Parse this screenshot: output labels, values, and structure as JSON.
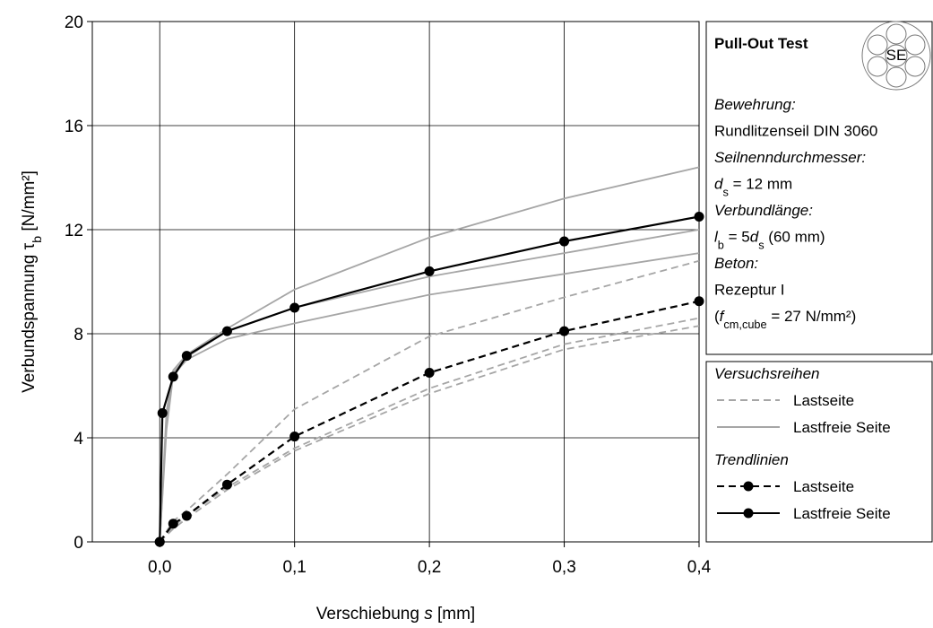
{
  "chart_data": {
    "type": "line",
    "xlabel": [
      {
        "text": "Verschiebung "
      },
      {
        "text": "s",
        "style": "italic"
      },
      {
        "text": " [mm]"
      }
    ],
    "ylabel": [
      {
        "text": "Verbundspannung τ"
      },
      {
        "text": "b",
        "style": "sub"
      },
      {
        "text": " [N/mm²]"
      }
    ],
    "xlim": [
      -0.05,
      0.4
    ],
    "xticks": [
      {
        "value": 0,
        "label": "0,0"
      },
      {
        "value": 0.1,
        "label": "0,1"
      },
      {
        "value": 0.2,
        "label": "0,2"
      },
      {
        "value": 0.3,
        "label": "0,3"
      },
      {
        "value": 0.4,
        "label": "0,4"
      }
    ],
    "ylim": [
      0,
      20
    ],
    "yticks": [
      0,
      4,
      8,
      12,
      16,
      20
    ],
    "grid": true,
    "series": [
      {
        "name": "Lastseite",
        "group": "Versuchsreihen",
        "color": "#a6a6a6",
        "dash": true,
        "markers": false,
        "x": [
          0,
          0.01,
          0.02,
          0.05,
          0.1,
          0.2,
          0.3,
          0.4
        ],
        "values": [
          0,
          0.8,
          1.2,
          2.6,
          5.1,
          7.9,
          9.4,
          10.8
        ]
      },
      {
        "name": "Lastseite",
        "group": "Versuchsreihen",
        "color": "#a6a6a6",
        "dash": true,
        "markers": false,
        "x": [
          0,
          0.01,
          0.02,
          0.05,
          0.1,
          0.2,
          0.3,
          0.4
        ],
        "values": [
          0,
          0.6,
          1.0,
          2.1,
          3.6,
          5.9,
          7.6,
          8.6
        ]
      },
      {
        "name": "Lastseite",
        "group": "Versuchsreihen",
        "color": "#a6a6a6",
        "dash": true,
        "markers": false,
        "x": [
          0,
          0.01,
          0.02,
          0.05,
          0.1,
          0.2,
          0.3,
          0.4
        ],
        "values": [
          0,
          0.5,
          0.9,
          2.0,
          3.5,
          5.7,
          7.4,
          8.3
        ]
      },
      {
        "name": "Lastfreie Seite",
        "group": "Versuchsreihen",
        "color": "#a6a6a6",
        "dash": false,
        "markers": false,
        "x": [
          0,
          0.005,
          0.01,
          0.02,
          0.05,
          0.1,
          0.2,
          0.3,
          0.4
        ],
        "values": [
          0,
          5.0,
          6.6,
          7.2,
          8.2,
          9.7,
          11.7,
          13.2,
          14.4
        ]
      },
      {
        "name": "Lastfreie Seite",
        "group": "Versuchsreihen",
        "color": "#a6a6a6",
        "dash": false,
        "markers": false,
        "x": [
          0,
          0.005,
          0.01,
          0.02,
          0.05,
          0.1,
          0.2,
          0.3,
          0.4
        ],
        "values": [
          0,
          4.6,
          6.5,
          7.1,
          8.1,
          9.0,
          10.2,
          11.1,
          12.0
        ]
      },
      {
        "name": "Lastfreie Seite",
        "group": "Versuchsreihen",
        "color": "#a6a6a6",
        "dash": false,
        "markers": false,
        "x": [
          0,
          0.005,
          0.01,
          0.02,
          0.05,
          0.1,
          0.2,
          0.3,
          0.4
        ],
        "values": [
          0,
          4.3,
          6.4,
          7.0,
          7.8,
          8.4,
          9.5,
          10.3,
          11.1
        ]
      },
      {
        "name": "Lastseite",
        "group": "Trendlinien",
        "color": "#000000",
        "dash": true,
        "markers": true,
        "x": [
          0,
          0.01,
          0.02,
          0.05,
          0.1,
          0.2,
          0.3,
          0.4
        ],
        "values": [
          0,
          0.7,
          1.0,
          2.2,
          4.05,
          6.5,
          8.1,
          9.25
        ]
      },
      {
        "name": "Lastfreie Seite",
        "group": "Trendlinien",
        "color": "#000000",
        "dash": false,
        "markers": true,
        "x": [
          0,
          0.002,
          0.01,
          0.02,
          0.05,
          0.1,
          0.2,
          0.3,
          0.4
        ],
        "values": [
          0,
          4.95,
          6.35,
          7.15,
          8.1,
          9.0,
          10.4,
          11.55,
          12.5
        ]
      }
    ],
    "info": {
      "title": "Pull-Out Test",
      "icon_label": "SE",
      "lines": [
        [
          {
            "text": "Bewehrung:",
            "style": "italic"
          }
        ],
        [
          {
            "text": "Rundlitzenseil DIN 3060"
          }
        ],
        [
          {
            "text": "Seilnenndurchmesser:",
            "style": "italic"
          }
        ],
        [
          {
            "text": "d",
            "style": "italic"
          },
          {
            "text": "s",
            "style": "sub"
          },
          {
            "text": " = 12 mm"
          }
        ],
        [
          {
            "text": "Verbundlänge:",
            "style": "italic"
          }
        ],
        [
          {
            "text": "l",
            "style": "italic"
          },
          {
            "text": "b",
            "style": "sub"
          },
          {
            "text": " = 5"
          },
          {
            "text": "d",
            "style": "italic"
          },
          {
            "text": "s",
            "style": "sub"
          },
          {
            "text": " (60 mm)"
          }
        ],
        [
          {
            "text": "Beton:",
            "style": "italic"
          }
        ],
        [
          {
            "text": "Rezeptur I"
          }
        ],
        [
          {
            "text": "("
          },
          {
            "text": "f",
            "style": "italic"
          },
          {
            "text": "cm,cube",
            "style": "sub"
          },
          {
            "text": " = 27 N/mm²)"
          }
        ]
      ]
    }
  }
}
